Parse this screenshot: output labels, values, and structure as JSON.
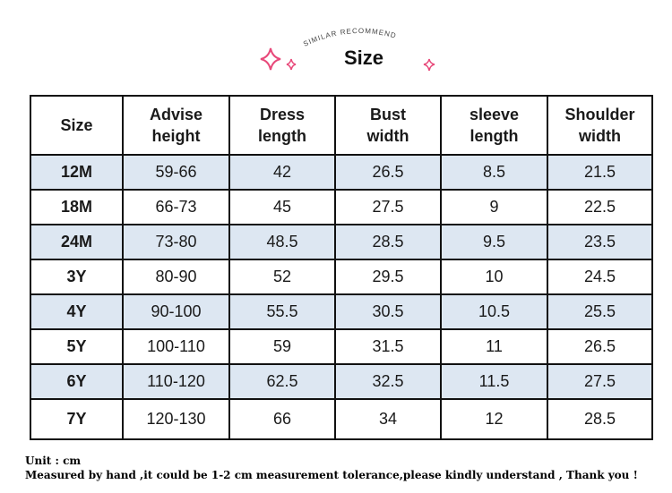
{
  "header": {
    "arc_text": "SIMILAR RECOMMEND",
    "title": "Size"
  },
  "table": {
    "headers": [
      [
        "Size"
      ],
      [
        "Advise",
        "height"
      ],
      [
        "Dress",
        "length"
      ],
      [
        "Bust",
        "width"
      ],
      [
        "sleeve",
        "length"
      ],
      [
        "Shoulder",
        "width"
      ]
    ],
    "rows": [
      [
        "12M",
        "59-66",
        "42",
        "26.5",
        "8.5",
        "21.5"
      ],
      [
        "18M",
        "66-73",
        "45",
        "27.5",
        "9",
        "22.5"
      ],
      [
        "24M",
        "73-80",
        "48.5",
        "28.5",
        "9.5",
        "23.5"
      ],
      [
        "3Y",
        "80-90",
        "52",
        "29.5",
        "10",
        "24.5"
      ],
      [
        "4Y",
        "90-100",
        "55.5",
        "30.5",
        "10.5",
        "25.5"
      ],
      [
        "5Y",
        "100-110",
        "59",
        "31.5",
        "11",
        "26.5"
      ],
      [
        "6Y",
        "110-120",
        "62.5",
        "32.5",
        "11.5",
        "27.5"
      ],
      [
        "7Y",
        "120-130",
        "66",
        "34",
        "12",
        "28.5"
      ]
    ]
  },
  "notes": [
    "Unit : cm",
    "Measured by hand ,it could be 1-2 cm measurement tolerance,please kindly understand , Thank you !"
  ]
}
